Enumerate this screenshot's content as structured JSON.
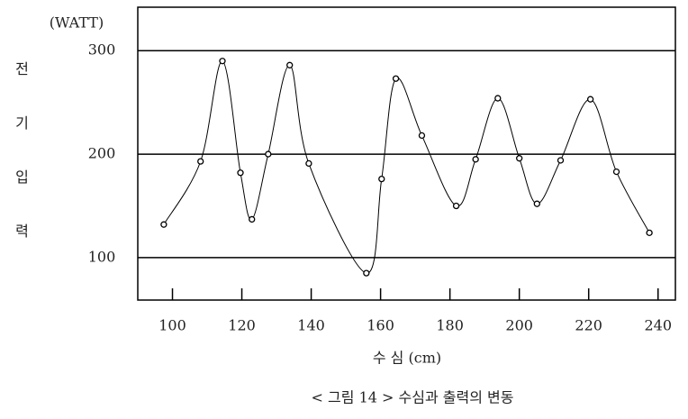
{
  "chart_data": {
    "type": "line",
    "caption": "< 그림 14 > 수심과 출력의 변동",
    "y_unit": "(WATT)",
    "y_label": "전기입력",
    "x_label": "수 심 (cm)",
    "x": [
      97.5,
      108.1,
      114.4,
      119.6,
      122.9,
      127.6,
      133.8,
      139.3,
      155.9,
      160.3,
      164.4,
      171.9,
      181.8,
      187.4,
      193.8,
      200,
      205.1,
      211.9,
      220.5,
      228,
      237.5
    ],
    "values": [
      132,
      193,
      290,
      182,
      137,
      200,
      286,
      191,
      85,
      176,
      273,
      218,
      150,
      195,
      254,
      196,
      152,
      194,
      253,
      183,
      124
    ],
    "color": "#000000",
    "xlim": [
      90,
      245
    ],
    "xticks": [
      100,
      120,
      140,
      160,
      180,
      200,
      220,
      240
    ],
    "ylim": [
      59,
      342
    ],
    "yticks": [
      100,
      200,
      300
    ],
    "grid": true
  }
}
